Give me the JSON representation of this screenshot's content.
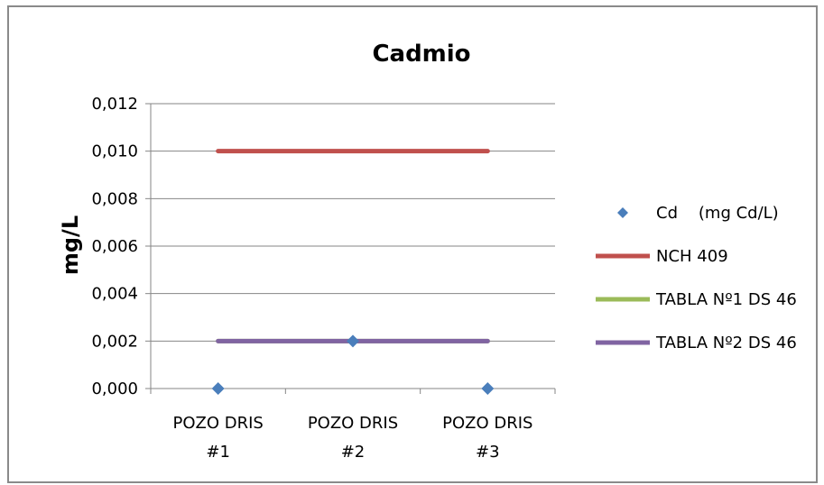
{
  "chart_data": {
    "type": "line",
    "title": "Cadmio",
    "xlabel": "",
    "ylabel": "mg/L",
    "categories": [
      [
        "POZO DRIS",
        "#1"
      ],
      [
        "POZO DRIS",
        "#2"
      ],
      [
        "POZO DRIS",
        "#3"
      ]
    ],
    "y_tick_labels": [
      "0,000",
      "0,002",
      "0,004",
      "0,006",
      "0,008",
      "0,010",
      "0,012"
    ],
    "ylim": [
      0,
      0.012
    ],
    "grid": true,
    "legend_position": "right",
    "series": [
      {
        "name": "Cd    (mg Cd/L)",
        "style": "marker",
        "marker": "diamond",
        "color": "#4a7ebb",
        "values": [
          0,
          0.002,
          0
        ]
      },
      {
        "name": "NCH 409",
        "style": "line",
        "color": "#c0504d",
        "values": [
          0.01,
          0.01,
          0.01
        ]
      },
      {
        "name": "TABLA Nº1 DS 46",
        "style": "line",
        "color": "#9bbb59",
        "values": [
          0.002,
          0.002,
          0.002
        ]
      },
      {
        "name": "TABLA Nº2 DS 46",
        "style": "line",
        "color": "#8064a2",
        "values": [
          0.002,
          0.002,
          0.002
        ]
      }
    ]
  }
}
